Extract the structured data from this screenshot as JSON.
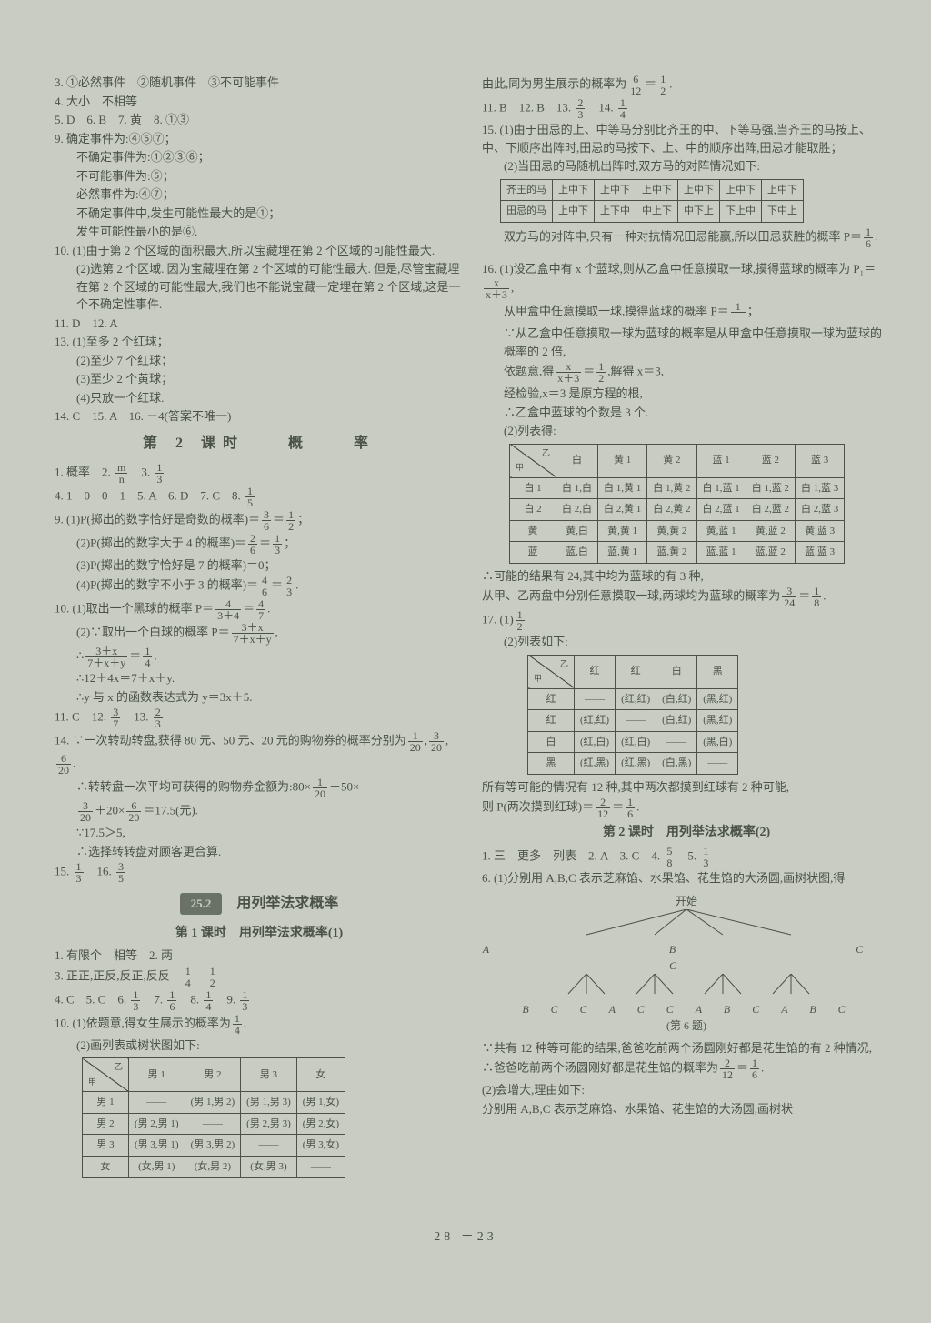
{
  "left": {
    "l3": "3. ①必然事件　②随机事件　③不可能事件",
    "l4": "4. 大小　不相等",
    "l5": "5. D　6. B　7. 黄　8. ①③",
    "l9a": "9. 确定事件为:④⑤⑦；",
    "l9b": "不确定事件为:①②③⑥；",
    "l9c": "不可能事件为:⑤；",
    "l9d": "必然事件为:④⑦；",
    "l9e": "不确定事件中,发生可能性最大的是①；",
    "l9f": "发生可能性最小的是⑥.",
    "l10a": "10. (1)由于第 2 个区域的面积最大,所以宝藏埋在第 2 个区域的可能性最大.",
    "l10b": "(2)选第 2 个区域. 因为宝藏埋在第 2 个区域的可能性最大. 但是,尽管宝藏埋在第 2 个区域的可能性最大,我们也不能说宝藏一定埋在第 2 个区域,这是一个不确定性事件.",
    "l11": "11. D　12. A",
    "l13a": "13. (1)至多 2 个红球；",
    "l13b": "(2)至少 7 个红球；",
    "l13c": "(3)至少 2 个黄球；",
    "l13d": "(4)只放一个红球.",
    "l14": "14. C　15. A　16. －4(答案不唯一)",
    "title1": "第 2 课时　　概　　率",
    "p1": "1. 概率　2. ",
    "p1b": "　3. ",
    "p4": "4. 1　0　0　1　5. A　6. D　7. C　8. ",
    "p9a": "9. (1)P(掷出的数字恰好是奇数的概率)＝",
    "p9b": "(2)P(掷出的数字大于 4 的概率)＝",
    "p9c": "(3)P(掷出的数字恰好是 7 的概率)＝0；",
    "p9d": "(4)P(掷出的数字不小于 3 的概率)＝",
    "p10a": "10. (1)取出一个黑球的概率 P＝",
    "p10b": "(2)∵取出一个白球的概率 P＝",
    "p10c": "∴",
    "p10d": "∴12＋4x＝7＋x＋y.",
    "p10e": "∴y 与 x 的函数表达式为 y＝3x＋5.",
    "p11": "11. C　12. ",
    "p11b": "　13. ",
    "p14a": "14. ∵一次转动转盘,获得 80 元、50 元、20 元的购物券的概率分别为",
    "p14b": "∴转转盘一次平均可获得的购物券金额为:80×",
    "p14b2": "＋50×",
    "p14c": "＋20×",
    "p14c2": "＝17.5(元).",
    "p14d": "∵17.5＞5,",
    "p14e": "∴选择转转盘对顾客更合算.",
    "p15": "15. ",
    "p15b": "　16. ",
    "section252": "25.2",
    "section252t": "　用列举法求概率",
    "sub1": "第 1 课时　用列举法求概率(1)",
    "q1": "1. 有限个　相等　2. 两",
    "q3": "3. 正正,正反,反正,反反　",
    "q4": "4. C　5. C　6. ",
    "q4b": "　7. ",
    "q4c": "　8. ",
    "q4d": "　9. ",
    "q10a": "10. (1)依题意,得女生展示的概率为",
    "q10b": "(2)画列表或树状图如下:",
    "tbl1": {
      "headers": [
        "",
        "男 1",
        "男 2",
        "男 3",
        "女"
      ],
      "rows": [
        [
          "男 1",
          "——",
          "(男 1,男 2)",
          "(男 1,男 3)",
          "(男 1,女)"
        ],
        [
          "男 2",
          "(男 2,男 1)",
          "——",
          "(男 2,男 3)",
          "(男 2,女)"
        ],
        [
          "男 3",
          "(男 3,男 1)",
          "(男 3,男 2)",
          "——",
          "(男 3,女)"
        ],
        [
          "女",
          "(女,男 1)",
          "(女,男 2)",
          "(女,男 3)",
          "——"
        ]
      ]
    }
  },
  "right": {
    "r1a": "由此,同为男生展示的概率为",
    "r11": "11. B　12. B　13. ",
    "r11b": "　14. ",
    "r15a": "15. (1)由于田忌的上、中等马分别比齐王的中、下等马强,当齐王的马按上、中、下顺序出阵时,田忌的马按下、上、中的顺序出阵,田忌才能取胜；",
    "r15b": "(2)当田忌的马随机出阵时,双方马的对阵情况如下:",
    "tbl2": {
      "rows": [
        [
          "齐王的马",
          "上中下",
          "上中下",
          "上中下",
          "上中下",
          "上中下",
          "上中下"
        ],
        [
          "田忌的马",
          "上中下",
          "上下中",
          "中上下",
          "中下上",
          "下上中",
          "下中上"
        ]
      ]
    },
    "r15c": "双方马的对阵中,只有一种对抗情况田忌能赢,所以田忌获胜的概率 P＝",
    "r16a": "16. (1)设乙盒中有 x 个蓝球,则从乙盒中任意摸取一球,摸得蓝球的概率为 P₁＝",
    "r16b": "从甲盒中任意摸取一球,摸得蓝球的概率 P＝",
    "r16c": "∵从乙盒中任意摸取一球为蓝球的概率是从甲盒中任意摸取一球为蓝球的概率的 2 倍,",
    "r16d": "依题意,得",
    "r16d2": ",解得 x＝3,",
    "r16e": "经检验,x＝3 是原方程的根,",
    "r16f": "∴乙盒中蓝球的个数是 3 个.",
    "r16g": "(2)列表得:",
    "tbl3": {
      "headers": [
        "",
        "白",
        "黄 1",
        "黄 2",
        "蓝 1",
        "蓝 2",
        "蓝 3"
      ],
      "rows": [
        [
          "白 1",
          "白 1,白",
          "白 1,黄 1",
          "白 1,黄 2",
          "白 1,蓝 1",
          "白 1,蓝 2",
          "白 1,蓝 3"
        ],
        [
          "白 2",
          "白 2,白",
          "白 2,黄 1",
          "白 2,黄 2",
          "白 2,蓝 1",
          "白 2,蓝 2",
          "白 2,蓝 3"
        ],
        [
          "黄",
          "黄,白",
          "黄,黄 1",
          "黄,黄 2",
          "黄,蓝 1",
          "黄,蓝 2",
          "黄,蓝 3"
        ],
        [
          "蓝",
          "蓝,白",
          "蓝,黄 1",
          "蓝,黄 2",
          "蓝,蓝 1",
          "蓝,蓝 2",
          "蓝,蓝 3"
        ]
      ]
    },
    "r16h": "∴可能的结果有 24,其中均为蓝球的有 3 种,",
    "r16i": "从甲、乙两盘中分别任意摸取一球,两球均为蓝球的概率为",
    "r17a": "17. (1)",
    "r17b": "(2)列表如下:",
    "tbl4": {
      "headers": [
        "",
        "红",
        "红",
        "白",
        "黑"
      ],
      "rows": [
        [
          "红",
          "——",
          "(红,红)",
          "(白,红)",
          "(黑,红)"
        ],
        [
          "红",
          "(红,红)",
          "——",
          "(白,红)",
          "(黑,红)"
        ],
        [
          "白",
          "(红,白)",
          "(红,白)",
          "——",
          "(黑,白)"
        ],
        [
          "黑",
          "(红,黑)",
          "(红,黑)",
          "(白,黑)",
          "——"
        ]
      ]
    },
    "r17c": "所有等可能的情况有 12 种,其中两次都摸到红球有 2 种可能,",
    "r17d": "则 P(两次摸到红球)＝",
    "sub2": "第 2 课时　用列举法求概率(2)",
    "s1": "1. 三　更多　列表　2. A　3. C　4. ",
    "s1b": "　5. ",
    "s6a": "6. (1)分别用 A,B,C 表示芝麻馅、水果馅、花生馅的大汤圆,画树状图,得",
    "tree_label": "开始",
    "tree_l1": "A　　　　B　　　　C　　　　C",
    "tree_l2": "B　C　C　A　C　C　A　B　C　A　B　C",
    "tree_caption": "(第 6 题)",
    "s6b": "∵共有 12 种等可能的结果,爸爸吃前两个汤圆刚好都是花生馅的有 2 种情况,",
    "s6c": "∴爸爸吃前两个汤圆刚好都是花生馅的概率为",
    "s6d": "(2)会增大,理由如下:",
    "s6e": "分别用 A,B,C 表示芝麻馅、水果馅、花生馅的大汤圆,画树状"
  },
  "pagenum": "28 －23"
}
